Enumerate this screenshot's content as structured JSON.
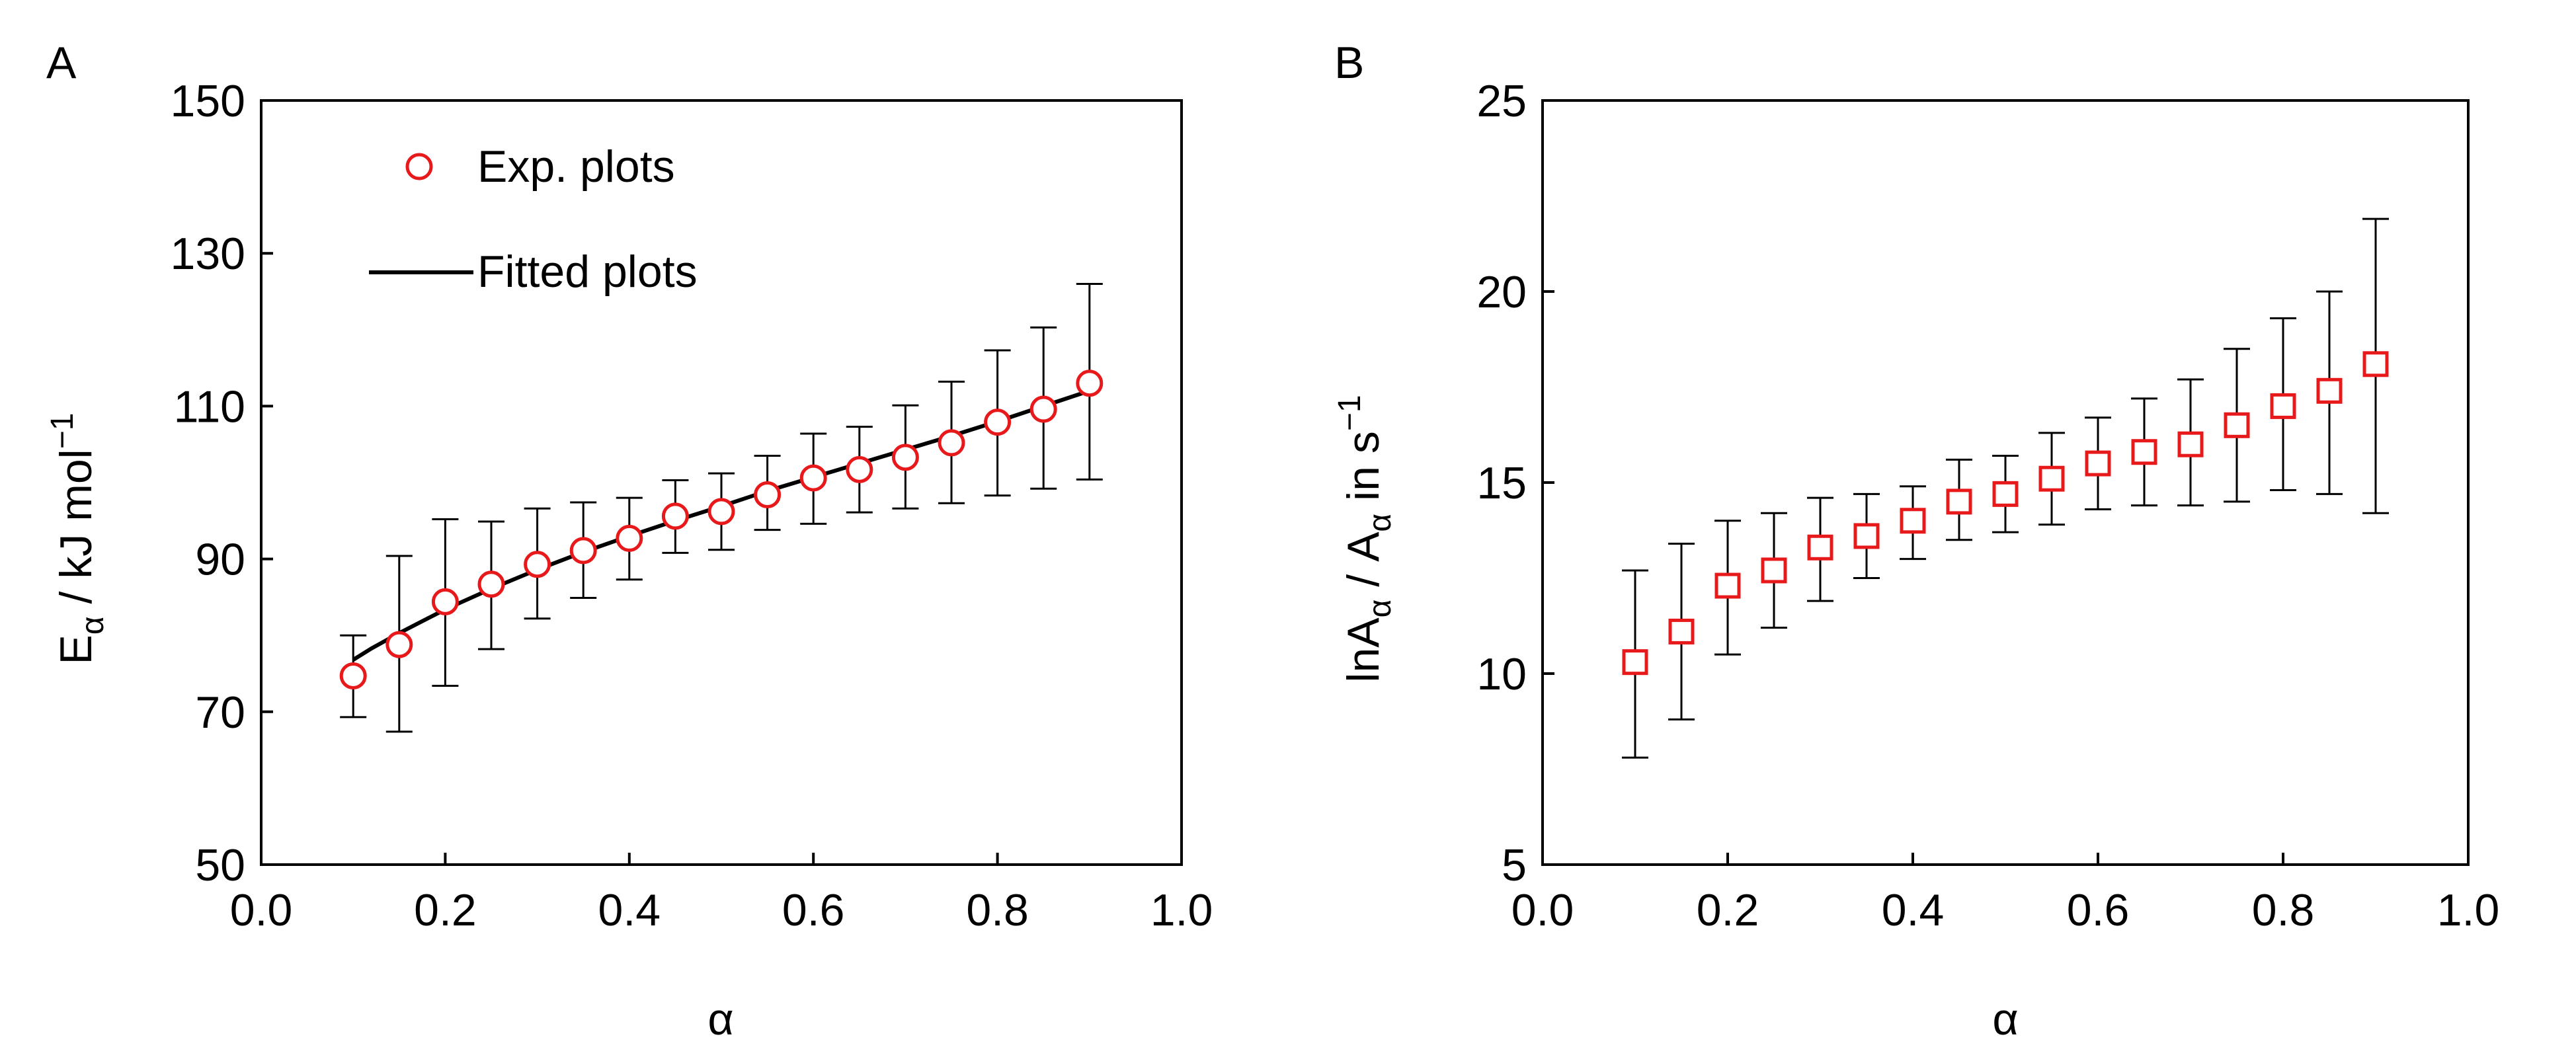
{
  "colors": {
    "marker": "#e8191b",
    "line": "#000000",
    "axis": "#000000"
  },
  "chart_data": [
    {
      "panel_label": "A",
      "type": "scatter",
      "title": "",
      "xlabel": "α",
      "ylabel": {
        "main": "E",
        "sub": "α",
        "rest": " / kJ mol",
        "sup": "−1"
      },
      "xlim": [
        0.0,
        1.0
      ],
      "ylim": [
        50,
        150
      ],
      "x_ticks": [
        "0.0",
        "0.2",
        "0.4",
        "0.6",
        "0.8",
        "1.0"
      ],
      "y_ticks": [
        "50",
        "70",
        "90",
        "110",
        "130",
        "150"
      ],
      "grid": false,
      "legend": {
        "position": "top-left",
        "exp_label": "Exp. plots",
        "fit_label": "Fitted plots"
      },
      "x": [
        0.1,
        0.15,
        0.2,
        0.25,
        0.3,
        0.35,
        0.4,
        0.45,
        0.5,
        0.55,
        0.6,
        0.65,
        0.7,
        0.75,
        0.8,
        0.85,
        0.9
      ],
      "series": [
        {
          "name": "Exp. plots",
          "marker": "circle",
          "values": [
            74.7,
            78.8,
            84.4,
            86.7,
            89.3,
            91.1,
            92.7,
            95.6,
            96.2,
            98.4,
            100.6,
            101.7,
            103.3,
            105.2,
            107.9,
            109.6,
            113.0
          ],
          "err_low": [
            69.3,
            67.4,
            73.4,
            78.2,
            82.2,
            84.9,
            87.3,
            90.8,
            91.2,
            93.8,
            94.6,
            96.1,
            96.6,
            97.3,
            98.3,
            99.2,
            100.4
          ],
          "err_high": [
            80.0,
            90.4,
            95.2,
            94.9,
            96.6,
            97.4,
            98.0,
            100.3,
            101.2,
            103.5,
            106.4,
            107.3,
            110.1,
            113.2,
            117.3,
            120.3,
            126.0
          ]
        },
        {
          "name": "Fitted plots",
          "type": "line",
          "x": [
            0.1,
            0.12,
            0.15,
            0.2,
            0.25,
            0.3,
            0.35,
            0.4,
            0.45,
            0.5,
            0.55,
            0.6,
            0.65,
            0.7,
            0.75,
            0.8,
            0.85,
            0.9
          ],
          "values": [
            76.8,
            78.3,
            80.3,
            83.4,
            86.1,
            88.6,
            90.9,
            93.0,
            95.0,
            96.9,
            98.9,
            100.7,
            102.5,
            104.3,
            106.1,
            108.0,
            110.0,
            112.0
          ]
        }
      ]
    },
    {
      "panel_label": "B",
      "type": "scatter",
      "title": "",
      "xlabel": "α",
      "ylabel": {
        "main": "lnA",
        "sub": "α",
        "mid": " / A",
        "sub2": "α",
        "rest": " in s",
        "sup": "−1"
      },
      "xlim": [
        0.0,
        1.0
      ],
      "ylim": [
        5,
        25
      ],
      "x_ticks": [
        "0.0",
        "0.2",
        "0.4",
        "0.6",
        "0.8",
        "1.0"
      ],
      "y_ticks": [
        "5",
        "10",
        "15",
        "20",
        "25"
      ],
      "grid": false,
      "x": [
        0.1,
        0.15,
        0.2,
        0.25,
        0.3,
        0.35,
        0.4,
        0.45,
        0.5,
        0.55,
        0.6,
        0.65,
        0.7,
        0.75,
        0.8,
        0.85,
        0.9
      ],
      "series": [
        {
          "name": "lnA",
          "marker": "square",
          "values": [
            10.3,
            11.1,
            12.3,
            12.7,
            13.3,
            13.6,
            14.0,
            14.5,
            14.7,
            15.1,
            15.5,
            15.8,
            16.0,
            16.5,
            17.0,
            17.4,
            18.1
          ],
          "err_low": [
            7.8,
            8.8,
            10.5,
            11.2,
            11.9,
            12.5,
            13.0,
            13.5,
            13.7,
            13.9,
            14.3,
            14.4,
            14.4,
            14.5,
            14.8,
            14.7,
            14.2
          ],
          "err_high": [
            12.7,
            13.4,
            14.0,
            14.2,
            14.6,
            14.7,
            14.9,
            15.6,
            15.7,
            16.3,
            16.7,
            17.2,
            17.7,
            18.5,
            19.3,
            20.0,
            21.9
          ]
        }
      ]
    }
  ]
}
